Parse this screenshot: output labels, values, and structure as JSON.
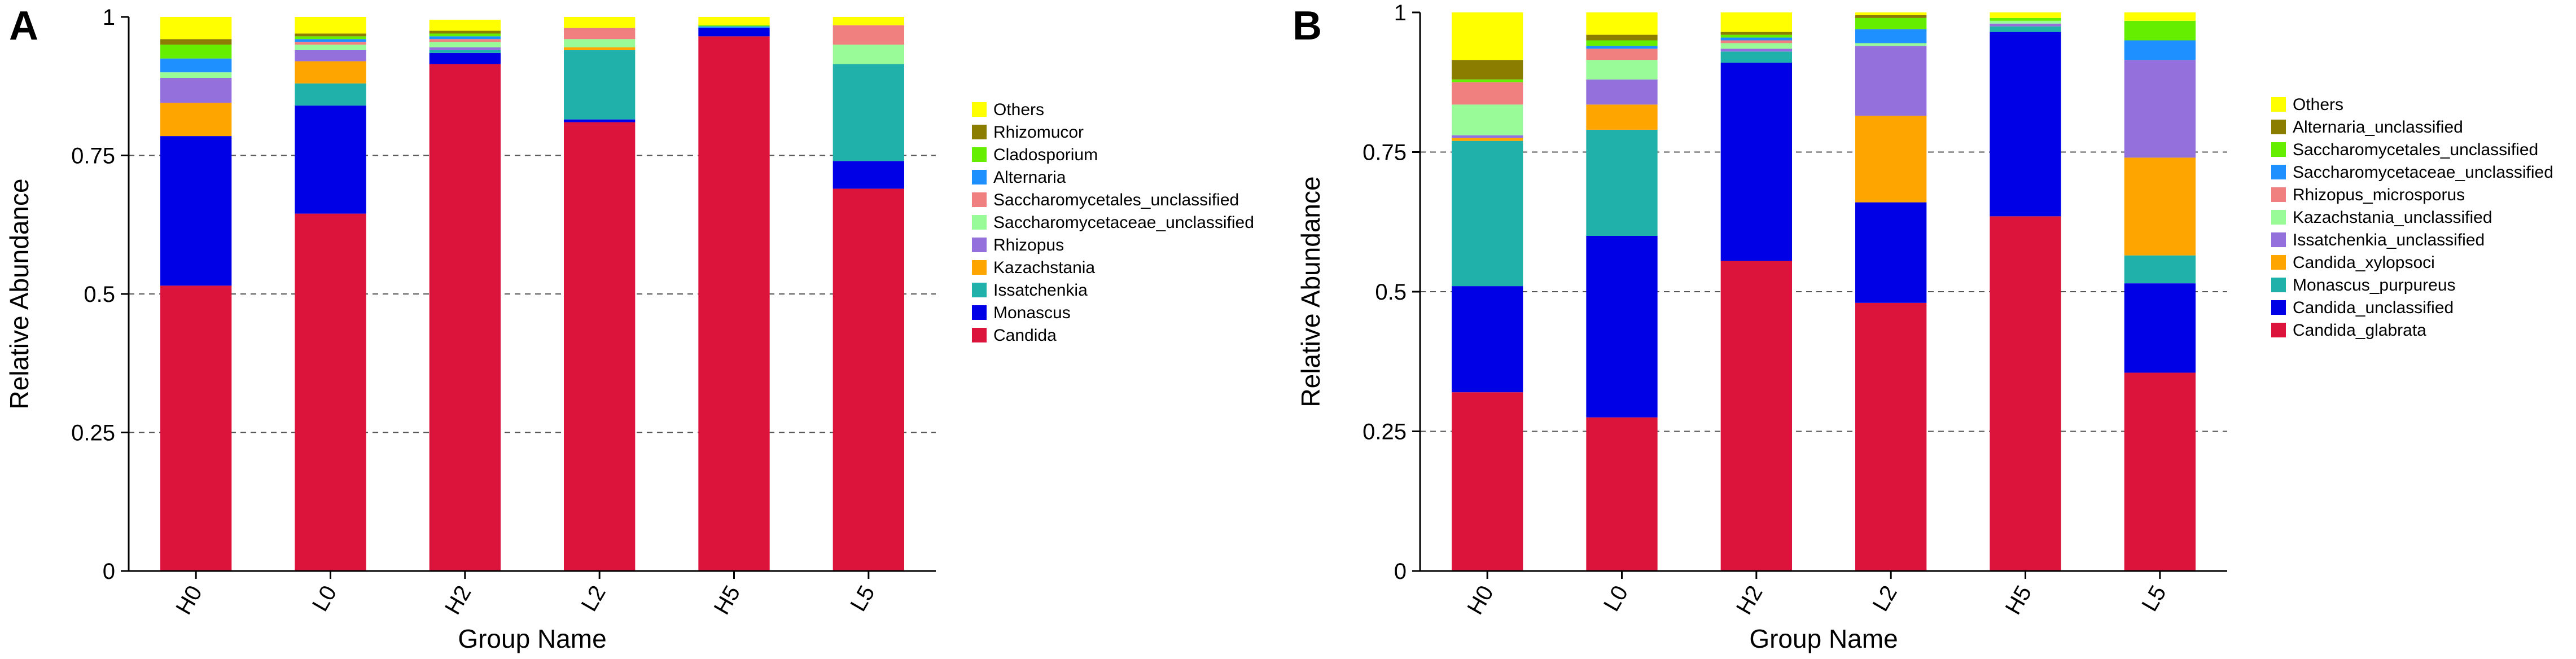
{
  "figure": {
    "panels": [
      "A",
      "B"
    ]
  },
  "colors": {
    "series": [
      "#DC143C",
      "#0000E6",
      "#20B2AA",
      "#FFA500",
      "#9370DB",
      "#98FB98",
      "#F08080",
      "#1E90FF",
      "#66EE00",
      "#8B7D00",
      "#FFFF00"
    ],
    "grid": "#555555",
    "axis": "#000000"
  },
  "chart_data": [
    {
      "panel_label": "A",
      "type": "bar",
      "stacked": true,
      "xlabel": "Group Name",
      "ylabel": "Relative Abundance",
      "ylim": [
        0,
        1
      ],
      "yticks": [
        0,
        0.25,
        0.5,
        0.75,
        1
      ],
      "ytick_labels": [
        "0",
        "0.25",
        "0.5",
        "0.75",
        "1"
      ],
      "grid": "horizontal dashed",
      "legend_position": "right",
      "categories": [
        "H0",
        "L0",
        "H2",
        "L2",
        "H5",
        "L5"
      ],
      "series": [
        {
          "name": "Candida",
          "values": [
            0.515,
            0.645,
            0.915,
            0.81,
            0.965,
            0.69
          ]
        },
        {
          "name": "Monascus",
          "values": [
            0.27,
            0.195,
            0.02,
            0.005,
            0.015,
            0.05
          ]
        },
        {
          "name": "Issatchenkia",
          "values": [
            0.0,
            0.04,
            0.005,
            0.125,
            0.0,
            0.175
          ]
        },
        {
          "name": "Kazachstania",
          "values": [
            0.06,
            0.04,
            0.0,
            0.005,
            0.0,
            0.0
          ]
        },
        {
          "name": "Rhizopus",
          "values": [
            0.045,
            0.02,
            0.005,
            0.0,
            0.0,
            0.0
          ]
        },
        {
          "name": "Saccharomycetaceae_unclassified",
          "values": [
            0.01,
            0.01,
            0.01,
            0.015,
            0.0,
            0.035
          ]
        },
        {
          "name": "Saccharomycetales_unclassified",
          "values": [
            0.0,
            0.005,
            0.005,
            0.02,
            0.0,
            0.035
          ]
        },
        {
          "name": "Alternaria",
          "values": [
            0.025,
            0.005,
            0.005,
            0.0,
            0.003,
            0.0
          ]
        },
        {
          "name": "Cladosporium",
          "values": [
            0.025,
            0.005,
            0.005,
            0.0,
            0.002,
            0.0
          ]
        },
        {
          "name": "Rhizomucor",
          "values": [
            0.01,
            0.005,
            0.005,
            0.0,
            0.0,
            0.0
          ]
        },
        {
          "name": "Others",
          "values": [
            0.04,
            0.03,
            0.02,
            0.02,
            0.015,
            0.015
          ]
        }
      ]
    },
    {
      "panel_label": "B",
      "type": "bar",
      "stacked": true,
      "xlabel": "Group Name",
      "ylabel": "Relative Abundance",
      "ylim": [
        0,
        1
      ],
      "yticks": [
        0,
        0.25,
        0.5,
        0.75,
        1
      ],
      "ytick_labels": [
        "0",
        "0.25",
        "0.5",
        "0.75",
        "1"
      ],
      "grid": "horizontal dashed",
      "legend_position": "right",
      "categories": [
        "H0",
        "L0",
        "H2",
        "L2",
        "H5",
        "L5"
      ],
      "series": [
        {
          "name": "Candida_glabrata",
          "values": [
            0.32,
            0.275,
            0.555,
            0.48,
            0.635,
            0.355
          ]
        },
        {
          "name": "Candida_unclassified",
          "values": [
            0.19,
            0.325,
            0.355,
            0.18,
            0.33,
            0.16
          ]
        },
        {
          "name": "Monascus_purpureus",
          "values": [
            0.26,
            0.19,
            0.02,
            0.0,
            0.01,
            0.05
          ]
        },
        {
          "name": "Candida_xylopsoci",
          "values": [
            0.005,
            0.045,
            0.0,
            0.155,
            0.0,
            0.175
          ]
        },
        {
          "name": "Issatchenkia_unclassified",
          "values": [
            0.005,
            0.045,
            0.005,
            0.125,
            0.005,
            0.175
          ]
        },
        {
          "name": "Kazachstania_unclassified",
          "values": [
            0.055,
            0.035,
            0.01,
            0.005,
            0.005,
            0.0
          ]
        },
        {
          "name": "Rhizopus_microsporus",
          "values": [
            0.04,
            0.02,
            0.005,
            0.0,
            0.0,
            0.0
          ]
        },
        {
          "name": "Saccharomycetaceae_unclassified",
          "values": [
            0.0,
            0.005,
            0.005,
            0.025,
            0.0,
            0.035
          ]
        },
        {
          "name": "Saccharomycetales_unclassified",
          "values": [
            0.005,
            0.01,
            0.005,
            0.02,
            0.005,
            0.035
          ]
        },
        {
          "name": "Alternaria_unclassified",
          "values": [
            0.035,
            0.01,
            0.005,
            0.005,
            0.0,
            0.0
          ]
        },
        {
          "name": "Others",
          "values": [
            0.085,
            0.04,
            0.035,
            0.005,
            0.01,
            0.015
          ]
        }
      ]
    }
  ]
}
